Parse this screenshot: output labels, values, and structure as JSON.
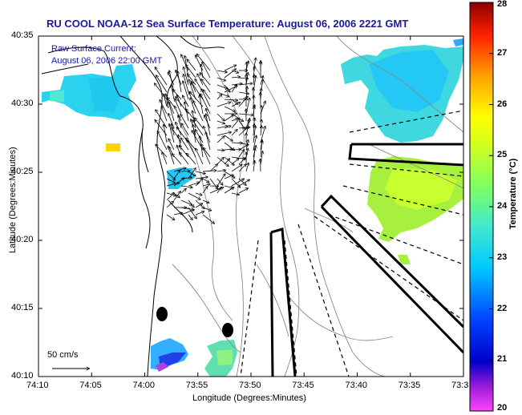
{
  "title": "RU COOL  NOAA-12  Sea Surface Temperature:  August 06, 2006 2221 GMT",
  "current_legend": {
    "line1": "Raw Surface Current:",
    "line2": "August 06, 2006 22:00 GMT"
  },
  "scale_label": "50 cm/s",
  "axes": {
    "xlabel": "Longitude (Degrees:Minutes)",
    "ylabel": "Latitude (Degrees:Minutes)",
    "x_ticks": [
      "74:10",
      "74:05",
      "74:00",
      "73:55",
      "73:50",
      "73:45",
      "73:40",
      "73:35",
      "73:3"
    ],
    "y_ticks": [
      "40:35",
      "40:30",
      "40:25",
      "40:20",
      "40:15",
      "40:10"
    ]
  },
  "colorbar": {
    "title": "Temperature (°C)",
    "ticks": [
      "28",
      "27",
      "26",
      "25",
      "24",
      "23",
      "22",
      "21",
      "20"
    ],
    "min": 20,
    "max": 28,
    "colormap": "jet"
  },
  "colors": {
    "title_blue": "#1a1a9c",
    "coast": "#000000",
    "bathymetry": "#888888"
  }
}
